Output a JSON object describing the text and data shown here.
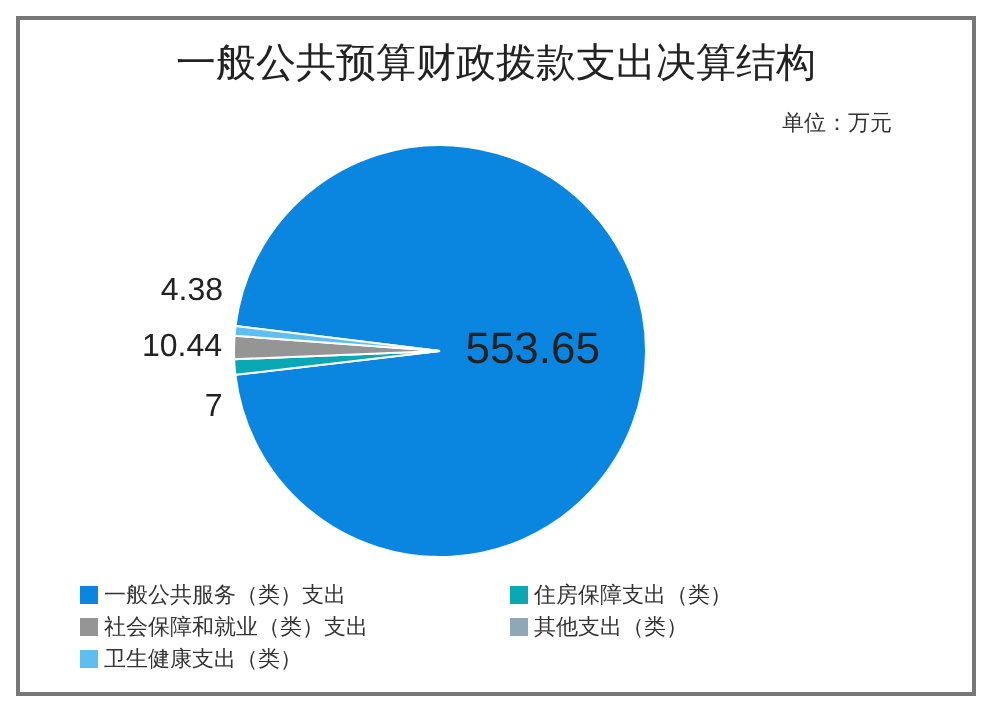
{
  "chart_data": {
    "type": "pie",
    "title": "一般公共预算财政拨款支出决算结构",
    "annotations": [
      "单位：万元"
    ],
    "categories": [
      "一般公共服务（类）支出",
      "住房保障支出（类）",
      "社会保障和就业（类）支出",
      "其他支出（类）",
      "卫生健康支出（类）"
    ],
    "values": [
      553.65,
      7,
      10.44,
      null,
      4.38
    ],
    "colors": [
      "#0a86e0",
      "#0aa8b5",
      "#959595",
      "#8fa8b8",
      "#5fbef0"
    ],
    "data_labels": true,
    "legend": "bottom"
  }
}
